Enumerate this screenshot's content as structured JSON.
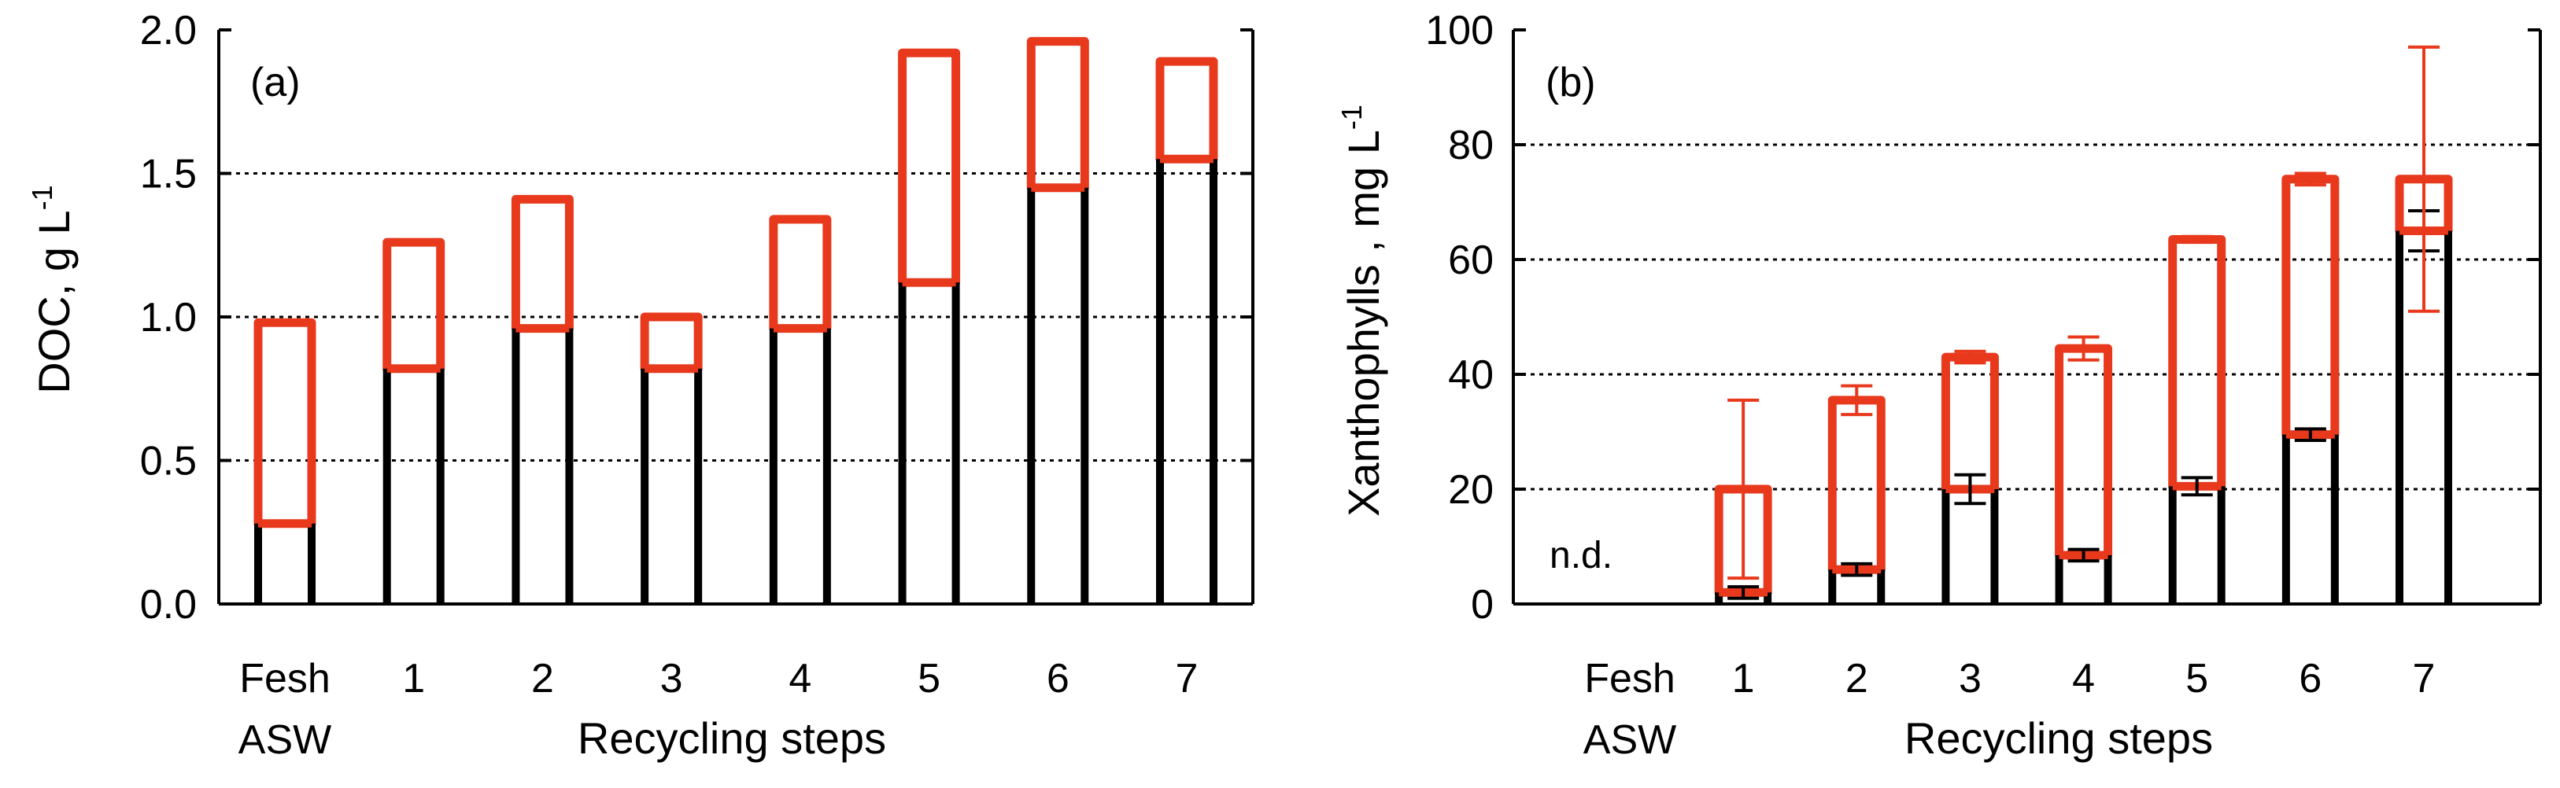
{
  "colors": {
    "axis": "#000000",
    "stacked_outline": "#e8391d",
    "base_outline": "#000000",
    "grid": "#000000"
  },
  "chart_data": [
    {
      "type": "bar",
      "panel_label": "(a)",
      "ylabel_main": "DOC, g L",
      "ylabel_sup": "-1",
      "xlabel": "Recycling steps",
      "first_category_line2": "ASW",
      "categories": [
        "Fesh",
        "1",
        "2",
        "3",
        "4",
        "5",
        "6",
        "7"
      ],
      "ylim": [
        0,
        2.0
      ],
      "yticks": [
        "0.0",
        "0.5",
        "1.0",
        "1.5",
        "2.0"
      ],
      "ytick_values": [
        0,
        0.5,
        1.0,
        1.5,
        2.0
      ],
      "grid_values": [
        0.5,
        1.0,
        1.5
      ],
      "series": [
        {
          "name": "lower",
          "values": [
            0.28,
            0.82,
            0.96,
            0.82,
            0.96,
            1.12,
            1.45,
            1.55
          ]
        },
        {
          "name": "upper",
          "values": [
            0.98,
            1.26,
            1.41,
            1.0,
            1.34,
            1.92,
            1.96,
            1.89
          ]
        }
      ]
    },
    {
      "type": "bar",
      "panel_label": "(b)",
      "ylabel_main": "Xanthophylls , mg L",
      "ylabel_sup": "-1",
      "xlabel": "Recycling steps",
      "first_category_line2": "ASW",
      "categories": [
        "Fesh",
        "1",
        "2",
        "3",
        "4",
        "5",
        "6",
        "7"
      ],
      "annotation": "n.d.",
      "ylim": [
        0,
        100
      ],
      "yticks": [
        "0",
        "20",
        "40",
        "60",
        "80",
        "100"
      ],
      "ytick_values": [
        0,
        20,
        40,
        60,
        80,
        100
      ],
      "grid_values": [
        20,
        40,
        60,
        80
      ],
      "series": [
        {
          "name": "lower",
          "values": [
            null,
            2,
            6,
            20,
            8.5,
            20.5,
            29.5,
            65
          ],
          "errors": [
            null,
            1,
            1,
            2.5,
            1,
            1.5,
            1,
            3.5
          ]
        },
        {
          "name": "upper",
          "values": [
            null,
            20,
            35.5,
            43,
            44.5,
            63.5,
            74,
            74
          ],
          "errors": [
            null,
            15.5,
            2.5,
            1,
            2,
            0.5,
            1,
            23
          ]
        }
      ]
    }
  ]
}
